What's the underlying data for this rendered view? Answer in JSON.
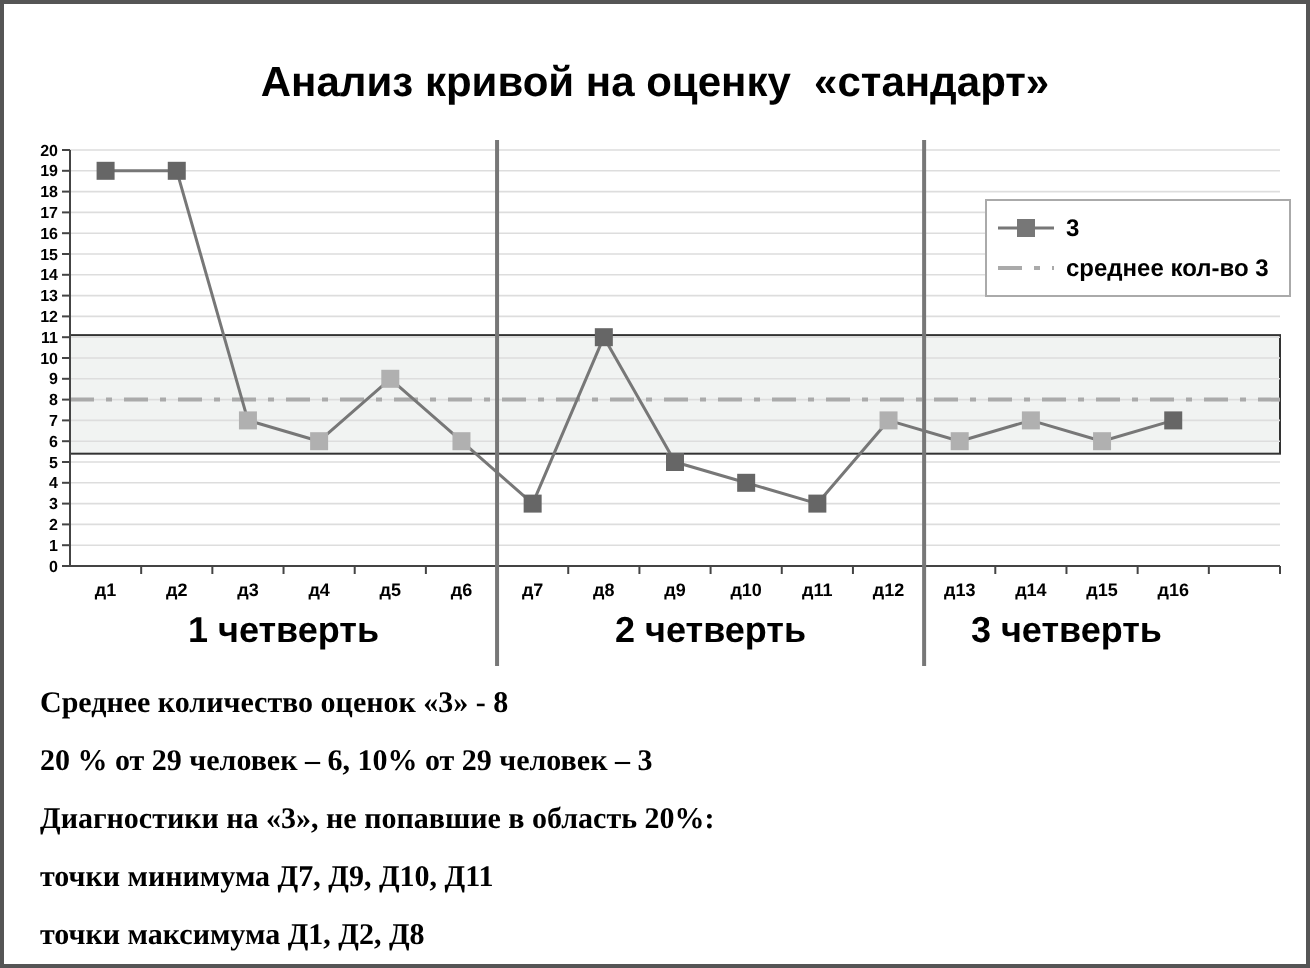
{
  "chart_data": {
    "type": "line",
    "title": "Анализ кривой на оценку  «стандарт»",
    "categories": [
      "д1",
      "д2",
      "д3",
      "д4",
      "д5",
      "д6",
      "д7",
      "д8",
      "д9",
      "д10",
      "д11",
      "д12",
      "д13",
      "д14",
      "д15",
      "д16",
      null
    ],
    "ylim": [
      0,
      20
    ],
    "yticks": [
      0,
      1,
      2,
      3,
      4,
      5,
      6,
      7,
      8,
      9,
      10,
      11,
      12,
      13,
      14,
      15,
      16,
      17,
      18,
      19,
      20
    ],
    "series": [
      {
        "name": "3",
        "color": "#777777",
        "values": [
          19,
          19,
          7,
          6,
          9,
          6,
          3,
          11,
          5,
          4,
          3,
          7,
          6,
          7,
          6,
          7,
          null
        ],
        "colors": [
          "#666666",
          "#666666",
          "#b0b0b0",
          "#b0b0b0",
          "#b0b0b0",
          "#b0b0b0",
          "#666666",
          "#666666",
          "#666666",
          "#666666",
          "#666666",
          "#b0b0b0",
          "#b0b0b0",
          "#b0b0b0",
          "#b0b0b0",
          "#666666",
          null
        ]
      }
    ],
    "marker": "square",
    "grid": "y",
    "legend": "top right",
    "ref_lines": [
      {
        "axis": "y",
        "value": 8,
        "label": "среднее кол-во 3",
        "color": "#aaaaaa",
        "line_style": "dashdot"
      }
    ],
    "bands": [
      {
        "axis": "y",
        "from": 5.4,
        "to": 11.1,
        "color": "#f1f3f2"
      }
    ],
    "annotations": [
      "1 четверть",
      "2 четверть",
      "3 четверть",
      "Среднее количество оценок «3» - 8",
      "20 % от 29 человек – 6, 10% от 29 человек – 3",
      "Диагностики на «3», не попавшие в область 20%:",
      "точки минимума Д7, Д9, Д10, Д11",
      "точки максимума Д1, Д2, Д8"
    ]
  }
}
